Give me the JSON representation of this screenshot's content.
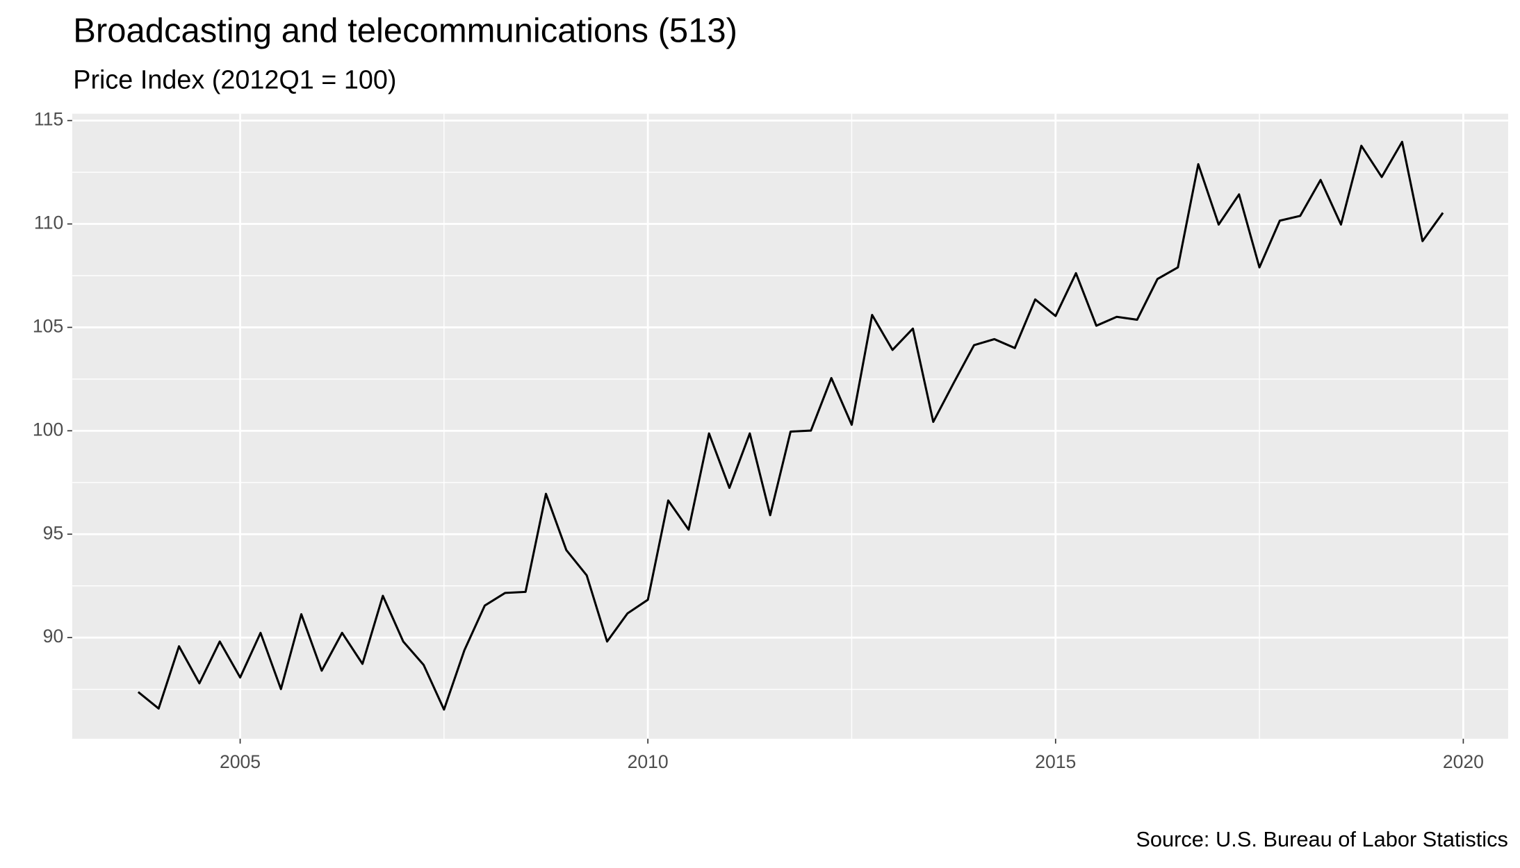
{
  "chart_data": {
    "type": "line",
    "title": "Broadcasting and telecommunications (513)",
    "subtitle": "Price Index (2012Q1 = 100)",
    "caption": "Source: U.S. Bureau of Labor Statistics",
    "x": [
      2003.75,
      2004,
      2004.25,
      2004.5,
      2004.75,
      2005,
      2005.25,
      2005.5,
      2005.75,
      2006,
      2006.25,
      2006.5,
      2006.75,
      2007,
      2007.25,
      2007.5,
      2007.75,
      2008,
      2008.25,
      2008.5,
      2008.75,
      2009,
      2009.25,
      2009.5,
      2009.75,
      2010,
      2010.25,
      2010.5,
      2010.75,
      2011,
      2011.25,
      2011.5,
      2011.75,
      2012,
      2012.25,
      2012.5,
      2012.75,
      2013,
      2013.25,
      2013.5,
      2013.75,
      2014,
      2014.25,
      2014.5,
      2014.75,
      2015,
      2015.25,
      2015.5,
      2015.75,
      2016,
      2016.25,
      2016.5,
      2016.75,
      2017,
      2017.25,
      2017.5,
      2017.75,
      2018,
      2018.25,
      2018.5,
      2018.75,
      2019,
      2019.25,
      2019.5,
      2019.75
    ],
    "series": [
      {
        "name": "Price Index",
        "color": "#000000",
        "values": [
          87.37,
          86.57,
          89.58,
          87.79,
          89.81,
          88.07,
          90.23,
          87.51,
          91.13,
          88.4,
          90.23,
          88.73,
          92.02,
          89.81,
          88.68,
          86.52,
          89.39,
          91.55,
          92.16,
          92.21,
          96.95,
          94.23,
          93.01,
          89.81,
          91.17,
          91.83,
          96.63,
          95.22,
          99.87,
          97.24,
          99.87,
          95.92,
          99.96,
          100.01,
          102.55,
          100.29,
          105.6,
          103.91,
          104.94,
          100.43,
          102.31,
          104.14,
          104.43,
          104.0,
          106.35,
          105.55,
          107.62,
          105.08,
          105.51,
          105.37,
          107.34,
          107.9,
          112.89,
          109.97,
          111.43,
          107.9,
          110.16,
          110.39,
          112.13,
          109.97,
          113.78,
          112.27,
          113.97,
          109.17,
          110.54
        ]
      }
    ],
    "xlim": [
      2002.94,
      2020.55
    ],
    "xticks": [
      2005,
      2010,
      2015,
      2020
    ],
    "ylim": [
      85.11,
      115.33
    ],
    "yticks": [
      90,
      95,
      100,
      105,
      110,
      115
    ],
    "grid": true,
    "background": "#ebebeb"
  }
}
